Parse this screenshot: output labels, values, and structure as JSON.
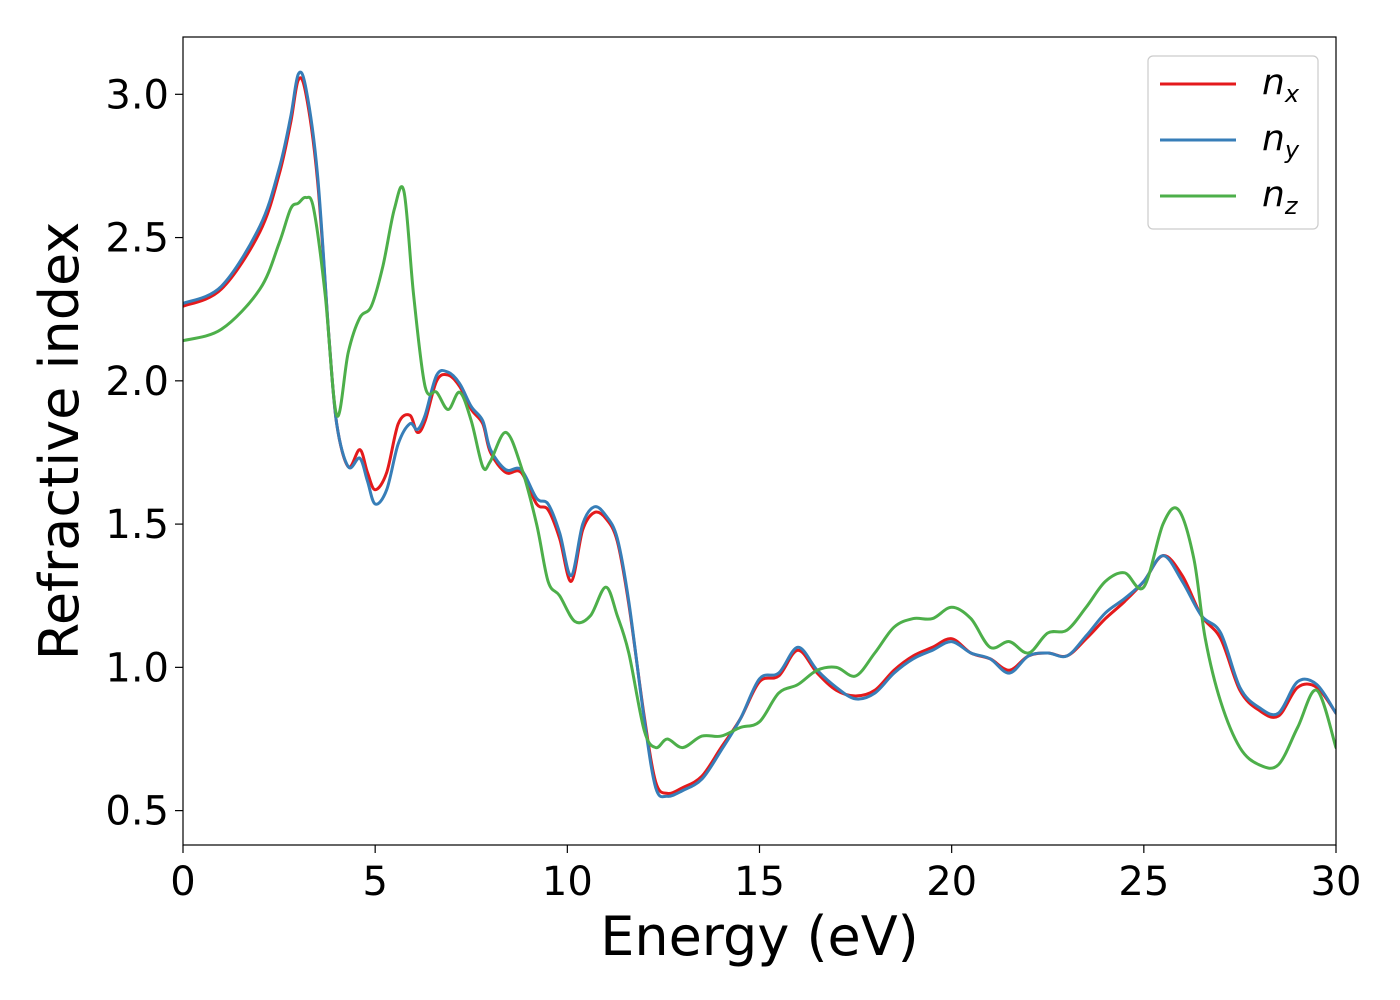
{
  "chart_data": {
    "type": "line",
    "title": "",
    "xlabel": "Energy (eV)",
    "ylabel": "Refractive index",
    "xlim": [
      0,
      30
    ],
    "ylim": [
      0.38,
      3.2
    ],
    "xticks": [
      0,
      5,
      10,
      15,
      20,
      25,
      30
    ],
    "xtick_labels": [
      "0",
      "5",
      "10",
      "15",
      "20",
      "25",
      "30"
    ],
    "yticks": [
      0.5,
      1.0,
      1.5,
      2.0,
      2.5,
      3.0
    ],
    "ytick_labels": [
      "0.5",
      "1.0",
      "1.5",
      "2.0",
      "2.5",
      "3.0"
    ],
    "grid": false,
    "legend_position": "top-right",
    "series": [
      {
        "name": "n_x",
        "label_base": "n",
        "label_sub": "x",
        "color": "#e41a1c",
        "x": [
          0,
          1,
          2,
          2.5,
          2.8,
          3.0,
          3.2,
          3.5,
          3.8,
          4.0,
          4.3,
          4.6,
          4.8,
          5.0,
          5.3,
          5.6,
          5.9,
          6.1,
          6.3,
          6.6,
          6.9,
          7.2,
          7.5,
          7.8,
          8.0,
          8.4,
          8.8,
          9.2,
          9.5,
          9.8,
          10.1,
          10.4,
          10.7,
          11.0,
          11.3,
          11.6,
          12.0,
          12.3,
          12.6,
          13.0,
          13.5,
          14.0,
          14.5,
          15.0,
          15.5,
          16.0,
          16.5,
          17.0,
          17.5,
          18.0,
          18.5,
          19.0,
          19.5,
          20.0,
          20.5,
          21.0,
          21.5,
          22.0,
          22.5,
          23.0,
          23.5,
          24.0,
          24.5,
          25.0,
          25.5,
          26.0,
          26.5,
          27.0,
          27.5,
          28.0,
          28.5,
          29.0,
          29.5,
          30.0
        ],
        "y": [
          2.26,
          2.32,
          2.52,
          2.72,
          2.9,
          3.05,
          3.0,
          2.7,
          2.15,
          1.85,
          1.7,
          1.76,
          1.68,
          1.62,
          1.68,
          1.85,
          1.88,
          1.82,
          1.86,
          2.0,
          2.02,
          1.98,
          1.9,
          1.85,
          1.75,
          1.68,
          1.68,
          1.57,
          1.55,
          1.45,
          1.3,
          1.48,
          1.54,
          1.52,
          1.44,
          1.22,
          0.83,
          0.6,
          0.56,
          0.58,
          0.62,
          0.72,
          0.82,
          0.95,
          0.97,
          1.06,
          0.98,
          0.92,
          0.9,
          0.92,
          0.99,
          1.04,
          1.07,
          1.1,
          1.05,
          1.03,
          0.99,
          1.04,
          1.05,
          1.04,
          1.1,
          1.17,
          1.23,
          1.3,
          1.39,
          1.32,
          1.18,
          1.1,
          0.92,
          0.85,
          0.83,
          0.93,
          0.93,
          0.84
        ]
      },
      {
        "name": "n_y",
        "label_base": "n",
        "label_sub": "y",
        "color": "#377eb8",
        "x": [
          0,
          1,
          2,
          2.5,
          2.8,
          3.0,
          3.2,
          3.5,
          3.8,
          4.0,
          4.3,
          4.6,
          4.8,
          5.0,
          5.3,
          5.6,
          5.9,
          6.1,
          6.3,
          6.6,
          6.9,
          7.2,
          7.5,
          7.8,
          8.0,
          8.4,
          8.8,
          9.2,
          9.5,
          9.8,
          10.1,
          10.4,
          10.7,
          11.0,
          11.3,
          11.6,
          12.0,
          12.3,
          12.6,
          13.0,
          13.5,
          14.0,
          14.5,
          15.0,
          15.5,
          16.0,
          16.5,
          17.0,
          17.5,
          18.0,
          18.5,
          19.0,
          19.5,
          20.0,
          20.5,
          21.0,
          21.5,
          22.0,
          22.5,
          23.0,
          23.5,
          24.0,
          24.5,
          25.0,
          25.5,
          26.0,
          26.5,
          27.0,
          27.5,
          28.0,
          28.5,
          29.0,
          29.5,
          30.0
        ],
        "y": [
          2.27,
          2.33,
          2.54,
          2.74,
          2.92,
          3.07,
          3.02,
          2.72,
          2.15,
          1.85,
          1.7,
          1.73,
          1.65,
          1.57,
          1.62,
          1.78,
          1.85,
          1.83,
          1.88,
          2.02,
          2.03,
          1.99,
          1.91,
          1.86,
          1.76,
          1.69,
          1.69,
          1.59,
          1.57,
          1.47,
          1.32,
          1.5,
          1.56,
          1.53,
          1.45,
          1.23,
          0.82,
          0.58,
          0.55,
          0.57,
          0.61,
          0.71,
          0.82,
          0.96,
          0.98,
          1.07,
          0.99,
          0.93,
          0.89,
          0.91,
          0.98,
          1.03,
          1.06,
          1.09,
          1.05,
          1.03,
          0.98,
          1.04,
          1.05,
          1.04,
          1.11,
          1.19,
          1.24,
          1.3,
          1.39,
          1.3,
          1.18,
          1.12,
          0.93,
          0.86,
          0.84,
          0.95,
          0.94,
          0.84
        ]
      },
      {
        "name": "n_z",
        "label_base": "n",
        "label_sub": "z",
        "color": "#4daf4a",
        "x": [
          0,
          1,
          2,
          2.5,
          2.8,
          3.0,
          3.2,
          3.4,
          3.7,
          4.0,
          4.3,
          4.6,
          4.9,
          5.2,
          5.5,
          5.75,
          6.0,
          6.3,
          6.6,
          6.9,
          7.2,
          7.5,
          7.8,
          8.0,
          8.4,
          8.8,
          9.2,
          9.5,
          9.8,
          10.2,
          10.6,
          11.0,
          11.3,
          11.6,
          12.0,
          12.3,
          12.6,
          13.0,
          13.5,
          14.0,
          14.5,
          15.0,
          15.5,
          16.0,
          16.5,
          17.0,
          17.5,
          18.0,
          18.5,
          19.0,
          19.5,
          20.0,
          20.5,
          21.0,
          21.5,
          22.0,
          22.5,
          23.0,
          23.5,
          24.0,
          24.5,
          25.0,
          25.5,
          25.9,
          26.3,
          26.6,
          27.0,
          27.5,
          28.0,
          28.5,
          29.0,
          29.5,
          30.0
        ],
        "y": [
          2.14,
          2.18,
          2.32,
          2.48,
          2.6,
          2.62,
          2.64,
          2.6,
          2.3,
          1.88,
          2.1,
          2.22,
          2.26,
          2.4,
          2.6,
          2.66,
          2.3,
          1.98,
          1.96,
          1.9,
          1.96,
          1.86,
          1.7,
          1.72,
          1.82,
          1.7,
          1.5,
          1.3,
          1.25,
          1.16,
          1.18,
          1.28,
          1.18,
          1.05,
          0.78,
          0.72,
          0.75,
          0.72,
          0.76,
          0.76,
          0.79,
          0.81,
          0.91,
          0.94,
          0.99,
          1.0,
          0.97,
          1.05,
          1.14,
          1.17,
          1.17,
          1.21,
          1.17,
          1.07,
          1.09,
          1.05,
          1.12,
          1.13,
          1.21,
          1.3,
          1.33,
          1.28,
          1.5,
          1.55,
          1.38,
          1.1,
          0.88,
          0.72,
          0.66,
          0.66,
          0.79,
          0.92,
          0.72
        ]
      }
    ]
  }
}
